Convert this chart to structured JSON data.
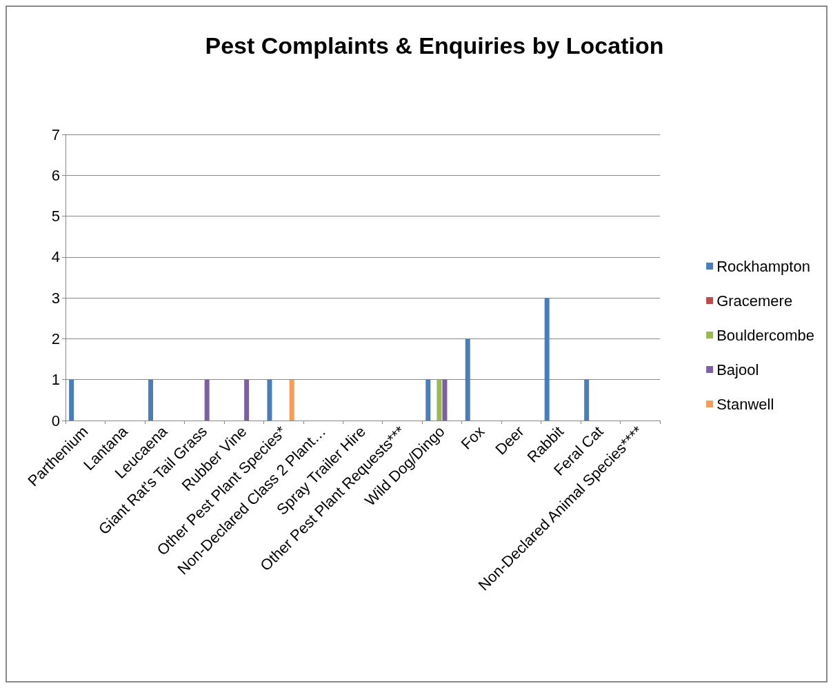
{
  "chart_data": {
    "type": "bar",
    "title": "Pest Complaints & Enquiries by Location",
    "categories": [
      "Parthenium",
      "Lantana",
      "Leucaena",
      "Giant Rat's Tail Grass",
      "Rubber Vine",
      "Other Pest Plant Species*",
      "Non-Declared Class 2 Plant…",
      "Spray Trailer Hire",
      "Other Pest Plant Requests***",
      "Wild Dog/Dingo",
      "Fox",
      "Deer",
      "Rabbit",
      "Feral Cat",
      "Non-Declared Animal Species****"
    ],
    "series": [
      {
        "name": "Rockhampton",
        "color": "#4a7ebb",
        "values": [
          1,
          0,
          1,
          0,
          0,
          1,
          0,
          0,
          0,
          1,
          2,
          0,
          3,
          1,
          0
        ]
      },
      {
        "name": "Gracemere",
        "color": "#be4b48",
        "values": [
          0,
          0,
          0,
          0,
          0,
          0,
          0,
          0,
          0,
          0,
          0,
          0,
          0,
          0,
          0
        ]
      },
      {
        "name": "Bouldercombe",
        "color": "#98b954",
        "values": [
          0,
          0,
          0,
          0,
          0,
          0,
          0,
          0,
          0,
          1,
          0,
          0,
          0,
          0,
          0
        ]
      },
      {
        "name": "Bajool",
        "color": "#7d60a0",
        "values": [
          0,
          0,
          0,
          1,
          1,
          0,
          0,
          0,
          0,
          1,
          0,
          0,
          0,
          0,
          0
        ]
      },
      {
        "name": "Stanwell",
        "color": "#f59d56",
        "values": [
          0,
          0,
          0,
          0,
          0,
          1,
          0,
          0,
          0,
          0,
          0,
          0,
          0,
          0,
          0
        ]
      },
      {
        "color": "#a7c0de",
        "values": [
          0,
          0,
          0,
          0,
          0,
          0,
          0,
          0,
          0,
          0,
          0,
          0,
          0,
          0,
          0
        ]
      }
    ],
    "ylim": [
      0,
      7
    ],
    "yticks": [
      0,
      1,
      2,
      3,
      4,
      5,
      6,
      7
    ],
    "grid": "y",
    "legend": "right"
  }
}
